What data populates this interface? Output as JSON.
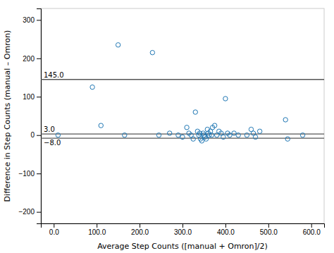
{
  "chart_data": {
    "type": "scatter",
    "x_label": "Average Step Counts ([manual + Omron]/2)",
    "y_label": "Difference in Step Counts (manual – Omron)",
    "x": [
      10,
      90,
      110,
      150,
      165,
      230,
      245,
      270,
      290,
      300,
      310,
      315,
      320,
      325,
      330,
      335,
      338,
      340,
      342,
      345,
      348,
      350,
      352,
      355,
      358,
      360,
      362,
      365,
      368,
      370,
      375,
      380,
      385,
      390,
      395,
      400,
      405,
      410,
      420,
      430,
      450,
      460,
      465,
      470,
      480,
      540,
      545,
      580
    ],
    "values": [
      0,
      125,
      25,
      235,
      0,
      215,
      0,
      5,
      0,
      -5,
      20,
      5,
      0,
      -10,
      60,
      10,
      0,
      5,
      -10,
      -15,
      5,
      0,
      -5,
      -10,
      15,
      5,
      0,
      10,
      0,
      20,
      25,
      0,
      10,
      5,
      -5,
      95,
      5,
      0,
      5,
      0,
      0,
      15,
      5,
      -5,
      10,
      40,
      -10,
      0
    ],
    "marker": "open-circle",
    "hlines": [
      {
        "value": 145.0,
        "label": "145.0"
      },
      {
        "value": 3.0,
        "label": "3.0"
      },
      {
        "value": -8.0,
        "label": "−8.0"
      }
    ],
    "xlim": [
      -30,
      630
    ],
    "ylim": [
      -230,
      330
    ],
    "xticks": [
      {
        "value": 0,
        "label": "0.0"
      },
      {
        "value": 100,
        "label": "100.0"
      },
      {
        "value": 200,
        "label": "200.0"
      },
      {
        "value": 300,
        "label": "300.0"
      },
      {
        "value": 400,
        "label": "400.0"
      },
      {
        "value": 500,
        "label": "500.0"
      },
      {
        "value": 600,
        "label": "600.0"
      }
    ],
    "yticks": [
      {
        "value": -200,
        "label": "−200"
      },
      {
        "value": -100,
        "label": "−100"
      },
      0,
      100,
      200,
      300
    ],
    "grid": false
  }
}
